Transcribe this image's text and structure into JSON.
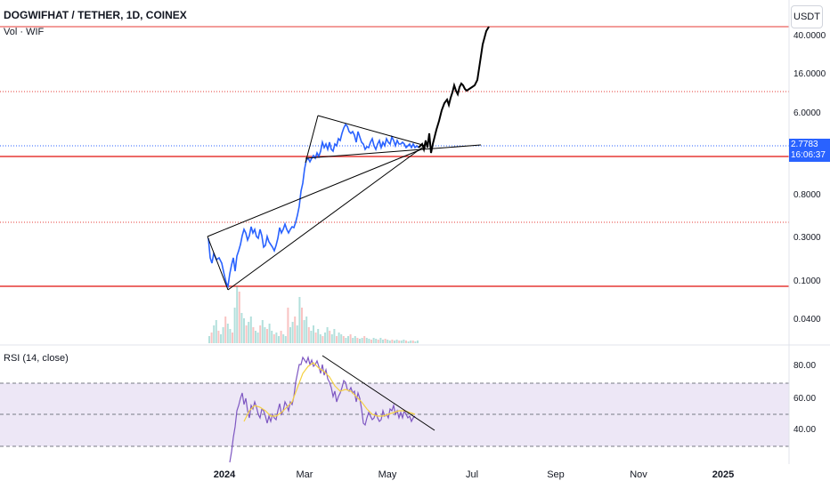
{
  "header": {
    "title": "DOGWIFHAT / TETHER, 1D, COINEX",
    "volume_label": "Vol · WIF",
    "currency_button": "USDT"
  },
  "price_axis": {
    "labels": [
      "40.0000",
      "16.0000",
      "6.0000",
      "2.7783",
      "0.8000",
      "0.3000",
      "0.1000",
      "0.0400"
    ],
    "scale": "log"
  },
  "price_badge": {
    "price": "2.7783",
    "countdown": "16:06:37",
    "color": "#2962ff"
  },
  "rsi": {
    "label": "RSI (14, close)",
    "axis_labels": [
      "80.00",
      "60.00",
      "40.00"
    ],
    "bands": [
      70,
      50,
      30
    ],
    "line_color": "#7e57c2",
    "ma_color": "#f5d142",
    "band_fill": "#ede7f6"
  },
  "time_axis": {
    "labels": [
      "2024",
      "Mar",
      "May",
      "Jul",
      "Sep",
      "Nov",
      "2025"
    ]
  },
  "colors": {
    "price_line": "#2962ff",
    "support_line": "#e53935",
    "drawing_line": "#000000",
    "volume_up": "#26a69a",
    "volume_down": "#ef5350"
  }
}
